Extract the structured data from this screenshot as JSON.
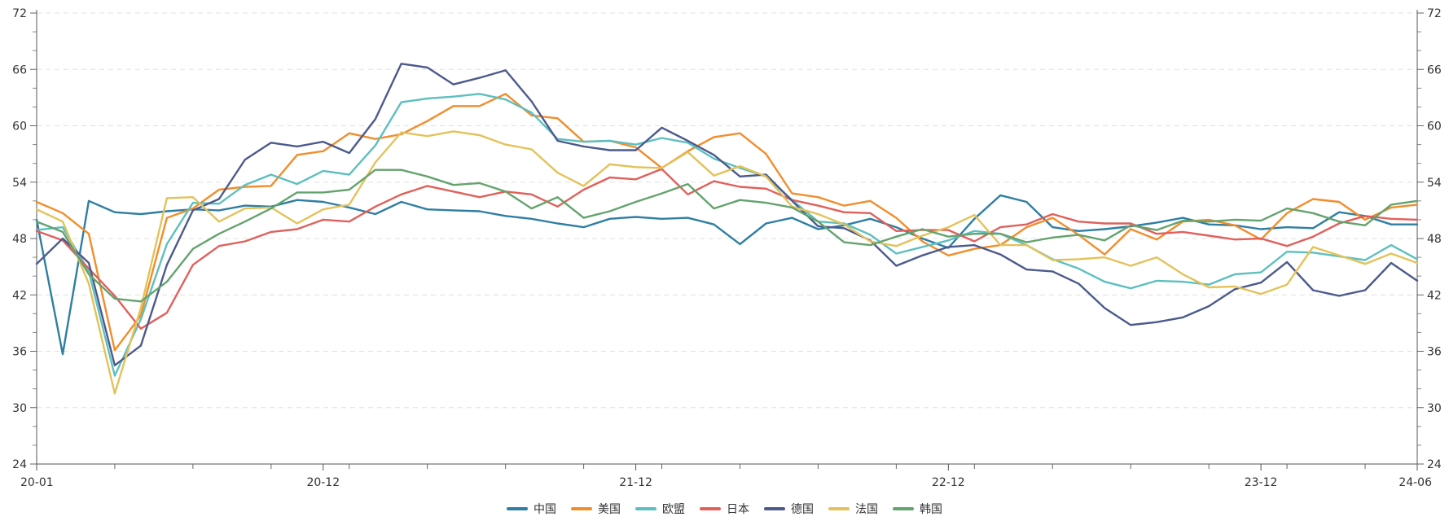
{
  "chart_data": {
    "type": "line",
    "title": "",
    "xlabel": "",
    "ylabel": "",
    "ylim": [
      24,
      72
    ],
    "yticks": [
      24,
      30,
      36,
      42,
      48,
      54,
      60,
      66,
      72
    ],
    "x_start": "20-01",
    "x_end": "24-06",
    "xtick_labels": [
      {
        "label": "20-01",
        "index": 0
      },
      {
        "label": "20-12",
        "index": 11
      },
      {
        "label": "21-12",
        "index": 23
      },
      {
        "label": "22-12",
        "index": 35
      },
      {
        "label": "23-12",
        "index": 47
      },
      {
        "label": "24-06",
        "index": 53
      }
    ],
    "grid": true,
    "legend_position": "bottom-center",
    "series": [
      {
        "name": "中国",
        "color": "#2f7ea3",
        "values": [
          50.0,
          35.7,
          52.0,
          50.8,
          50.6,
          50.9,
          51.1,
          51.0,
          51.5,
          51.4,
          52.1,
          51.9,
          51.3,
          50.6,
          51.9,
          51.1,
          51.0,
          50.9,
          50.4,
          50.1,
          49.6,
          49.2,
          50.1,
          50.3,
          50.1,
          50.2,
          49.5,
          47.4,
          49.6,
          50.2,
          49.0,
          49.4,
          50.1,
          49.2,
          48.0,
          47.0,
          50.1,
          52.6,
          51.9,
          49.2,
          48.8,
          49.0,
          49.3,
          49.7,
          50.2,
          49.5,
          49.4,
          49.0,
          49.2,
          49.1,
          50.8,
          50.4,
          49.5,
          49.5
        ]
      },
      {
        "name": "美国",
        "color": "#f28d2b",
        "values": [
          51.9,
          50.7,
          48.5,
          36.1,
          39.8,
          50.2,
          51.2,
          53.2,
          53.5,
          53.6,
          56.9,
          57.3,
          59.2,
          58.6,
          59.1,
          60.5,
          62.1,
          62.1,
          63.4,
          61.1,
          60.8,
          58.3,
          58.4,
          57.7,
          55.5,
          57.3,
          58.8,
          59.2,
          57.0,
          52.8,
          52.4,
          51.5,
          52.0,
          50.2,
          47.7,
          46.2,
          46.9,
          47.3,
          49.2,
          50.2,
          48.4,
          46.3,
          49.0,
          47.9,
          49.8,
          50.0,
          49.4,
          47.9,
          50.7,
          52.2,
          51.9,
          50.0,
          51.3,
          51.6
        ]
      },
      {
        "name": "欧盟",
        "color": "#5ebfbf",
        "values": [
          48.9,
          49.2,
          44.5,
          33.4,
          39.4,
          47.4,
          51.8,
          51.7,
          53.7,
          54.8,
          53.8,
          55.2,
          54.8,
          57.9,
          62.5,
          62.9,
          63.1,
          63.4,
          62.8,
          61.4,
          58.6,
          58.3,
          58.4,
          58.0,
          58.7,
          58.2,
          56.5,
          55.5,
          54.6,
          52.1,
          49.8,
          49.6,
          48.4,
          46.4,
          47.1,
          47.8,
          48.8,
          48.5,
          47.3,
          45.8,
          44.8,
          43.4,
          42.7,
          43.5,
          43.4,
          43.1,
          44.2,
          44.4,
          46.6,
          46.5,
          46.1,
          45.7,
          47.3,
          45.8
        ]
      },
      {
        "name": "日本",
        "color": "#e0605b",
        "values": [
          48.8,
          47.8,
          44.8,
          41.9,
          38.4,
          40.1,
          45.2,
          47.2,
          47.7,
          48.7,
          49.0,
          50.0,
          49.8,
          51.4,
          52.7,
          53.6,
          53.0,
          52.4,
          53.0,
          52.7,
          51.4,
          53.2,
          54.5,
          54.3,
          55.4,
          52.7,
          54.1,
          53.5,
          53.3,
          52.1,
          51.5,
          50.8,
          50.7,
          48.8,
          48.9,
          48.9,
          47.7,
          49.2,
          49.5,
          50.6,
          49.8,
          49.6,
          49.6,
          48.5,
          48.7,
          48.3,
          47.9,
          48.0,
          47.2,
          48.2,
          49.6,
          50.4,
          50.1,
          50.0
        ]
      },
      {
        "name": "德国",
        "color": "#4c5a8c",
        "values": [
          45.3,
          48.0,
          45.4,
          34.5,
          36.6,
          45.2,
          51.0,
          52.2,
          56.4,
          58.2,
          57.8,
          58.3,
          57.1,
          60.7,
          66.6,
          66.2,
          64.4,
          65.1,
          65.9,
          62.6,
          58.4,
          57.8,
          57.4,
          57.4,
          59.8,
          58.4,
          56.9,
          54.6,
          54.8,
          52.0,
          49.3,
          49.1,
          47.8,
          45.1,
          46.2,
          47.1,
          47.3,
          46.3,
          44.7,
          44.5,
          43.2,
          40.6,
          38.8,
          39.1,
          39.6,
          40.8,
          42.6,
          43.3,
          45.5,
          42.5,
          41.9,
          42.5,
          45.4,
          43.5
        ]
      },
      {
        "name": "法国",
        "color": "#e3c25a",
        "values": [
          51.1,
          49.8,
          43.2,
          31.5,
          40.6,
          52.3,
          52.4,
          49.8,
          51.2,
          51.3,
          49.6,
          51.1,
          51.6,
          56.1,
          59.3,
          58.9,
          59.4,
          59.0,
          58.0,
          57.5,
          55.0,
          53.6,
          55.9,
          55.6,
          55.5,
          57.2,
          54.7,
          55.7,
          54.6,
          51.4,
          50.6,
          49.5,
          47.7,
          47.2,
          48.3,
          49.2,
          50.5,
          47.3,
          47.3,
          45.7,
          45.8,
          46.0,
          45.1,
          46.0,
          44.2,
          42.8,
          42.9,
          42.1,
          43.1,
          47.1,
          46.2,
          45.3,
          46.4,
          45.4
        ]
      },
      {
        "name": "韩国",
        "color": "#64a36e",
        "values": [
          49.8,
          48.7,
          44.2,
          41.6,
          41.3,
          43.4,
          46.9,
          48.5,
          49.8,
          51.2,
          52.9,
          52.9,
          53.2,
          55.3,
          55.3,
          54.6,
          53.7,
          53.9,
          53.0,
          51.2,
          52.4,
          50.2,
          50.9,
          51.9,
          52.8,
          53.8,
          51.2,
          52.1,
          51.8,
          51.3,
          49.8,
          47.6,
          47.3,
          48.2,
          49.0,
          48.2,
          48.5,
          48.5,
          47.6,
          48.1,
          48.4,
          47.8,
          49.4,
          48.9,
          49.9,
          49.8,
          50.0,
          49.9,
          51.2,
          50.7,
          49.8,
          49.4,
          51.6,
          52.0
        ]
      }
    ]
  }
}
